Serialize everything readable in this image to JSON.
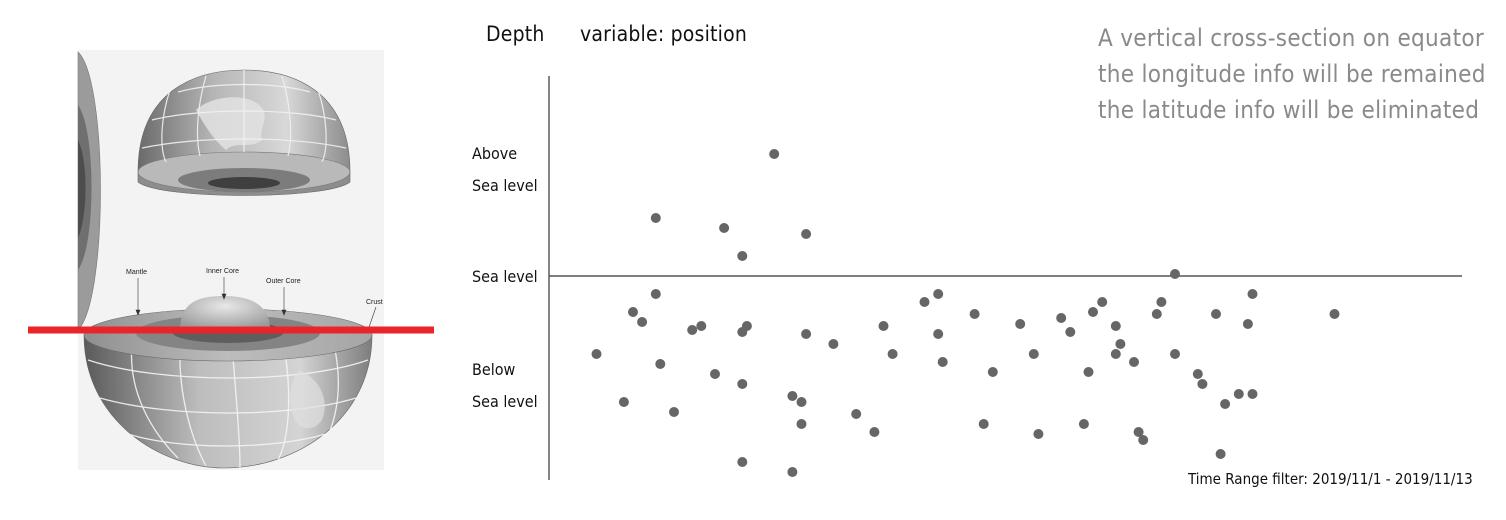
{
  "header": {
    "depth_label": "Depth",
    "variable_label": "variable: position"
  },
  "annotation": {
    "lines": [
      "A vertical cross-section on equator",
      "the longitude info will be remained",
      "the latitude info will be eliminated"
    ]
  },
  "filter_text": "Time Range filter: 2019/11/1 - 2019/11/13",
  "earth_diagram": {
    "labels": {
      "mantle": "Mantle",
      "inner_core": "Inner Core",
      "outer_core": "Outer Core",
      "crust": "Crust"
    },
    "cut_line_color": "#e8262a"
  },
  "chart_data": {
    "type": "scatter",
    "title": "",
    "xlabel": "",
    "ylabel": "Depth",
    "y_tick_labels": [
      {
        "text": [
          "Above",
          "Sea level"
        ],
        "value": 0.61
      },
      {
        "text": [
          "Sea level"
        ],
        "value": 0
      },
      {
        "text": [
          "Below",
          "Sea level"
        ],
        "value": -0.48
      }
    ],
    "reference_line": {
      "label": "Sea level",
      "value": 0
    },
    "xlim": [
      0,
      1
    ],
    "ylim": [
      -1,
      1
    ],
    "grid": false,
    "point_color": "#666666",
    "points": [
      [
        0.05,
        -0.39
      ],
      [
        0.08,
        -0.63
      ],
      [
        0.09,
        -0.18
      ],
      [
        0.1,
        -0.23
      ],
      [
        0.115,
        0.29
      ],
      [
        0.115,
        -0.09
      ],
      [
        0.12,
        -0.44
      ],
      [
        0.135,
        -0.68
      ],
      [
        0.155,
        -0.27
      ],
      [
        0.165,
        -0.25
      ],
      [
        0.18,
        -0.49
      ],
      [
        0.19,
        0.24
      ],
      [
        0.21,
        0.1
      ],
      [
        0.21,
        -0.28
      ],
      [
        0.215,
        -0.25
      ],
      [
        0.21,
        -0.93
      ],
      [
        0.21,
        -0.54
      ],
      [
        0.245,
        0.61
      ],
      [
        0.265,
        -0.6
      ],
      [
        0.265,
        -0.98
      ],
      [
        0.275,
        -0.63
      ],
      [
        0.275,
        -0.74
      ],
      [
        0.28,
        0.21
      ],
      [
        0.28,
        -0.29
      ],
      [
        0.31,
        -0.34
      ],
      [
        0.335,
        -0.69
      ],
      [
        0.355,
        -0.78
      ],
      [
        0.365,
        -0.25
      ],
      [
        0.375,
        -0.39
      ],
      [
        0.41,
        -0.13
      ],
      [
        0.425,
        -0.09
      ],
      [
        0.425,
        -0.29
      ],
      [
        0.43,
        -0.43
      ],
      [
        0.465,
        -0.19
      ],
      [
        0.475,
        -0.74
      ],
      [
        0.485,
        -0.48
      ],
      [
        0.515,
        -0.24
      ],
      [
        0.53,
        -0.39
      ],
      [
        0.535,
        -0.79
      ],
      [
        0.56,
        -0.21
      ],
      [
        0.57,
        -0.28
      ],
      [
        0.585,
        -0.74
      ],
      [
        0.59,
        -0.48
      ],
      [
        0.595,
        -0.18
      ],
      [
        0.605,
        -0.13
      ],
      [
        0.62,
        -0.25
      ],
      [
        0.62,
        -0.39
      ],
      [
        0.625,
        -0.34
      ],
      [
        0.64,
        -0.43
      ],
      [
        0.645,
        -0.78
      ],
      [
        0.65,
        -0.82
      ],
      [
        0.665,
        -0.19
      ],
      [
        0.67,
        -0.13
      ],
      [
        0.685,
        0.01
      ],
      [
        0.685,
        -0.39
      ],
      [
        0.71,
        -0.49
      ],
      [
        0.715,
        -0.54
      ],
      [
        0.73,
        -0.19
      ],
      [
        0.735,
        -0.89
      ],
      [
        0.74,
        -0.64
      ],
      [
        0.755,
        -0.59
      ],
      [
        0.765,
        -0.24
      ],
      [
        0.77,
        -0.09
      ],
      [
        0.77,
        -0.59
      ],
      [
        0.86,
        -0.19
      ]
    ]
  }
}
